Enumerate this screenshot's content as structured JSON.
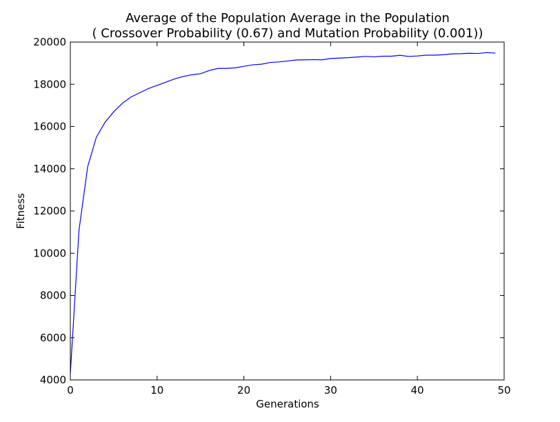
{
  "chart_data": {
    "type": "line",
    "title": "Average of the Population Average in the Population",
    "subtitle": "( Crossover Probability (0.67) and Mutation Probability (0.001))",
    "xlabel": "Generations",
    "ylabel": "Fitness",
    "xlim": [
      0,
      50
    ],
    "ylim": [
      4000,
      20000
    ],
    "x_ticks": [
      0,
      10,
      20,
      30,
      40,
      50
    ],
    "y_ticks": [
      4000,
      6000,
      8000,
      10000,
      12000,
      14000,
      16000,
      18000,
      20000
    ],
    "grid": false,
    "legend": "none",
    "line_color": "#0000ff",
    "series": [
      {
        "x": [
          0,
          1,
          2,
          3,
          4,
          5,
          6,
          7,
          8,
          9,
          10,
          11,
          12,
          13,
          14,
          15,
          16,
          17,
          18,
          19,
          20,
          21,
          22,
          23,
          24,
          25,
          26,
          27,
          28,
          29,
          30,
          31,
          32,
          33,
          34,
          35,
          36,
          37,
          38,
          39,
          40,
          41,
          42,
          43,
          44,
          45,
          46,
          47,
          48,
          49
        ],
        "values": [
          4300,
          11100,
          14100,
          15500,
          16200,
          16700,
          17100,
          17400,
          17600,
          17800,
          17950,
          18100,
          18250,
          18370,
          18450,
          18500,
          18650,
          18750,
          18750,
          18780,
          18850,
          18920,
          18950,
          19030,
          19060,
          19100,
          19150,
          19160,
          19170,
          19160,
          19220,
          19240,
          19260,
          19290,
          19320,
          19300,
          19330,
          19330,
          19370,
          19320,
          19340,
          19380,
          19380,
          19400,
          19440,
          19450,
          19470,
          19460,
          19500,
          19480
        ]
      }
    ]
  }
}
